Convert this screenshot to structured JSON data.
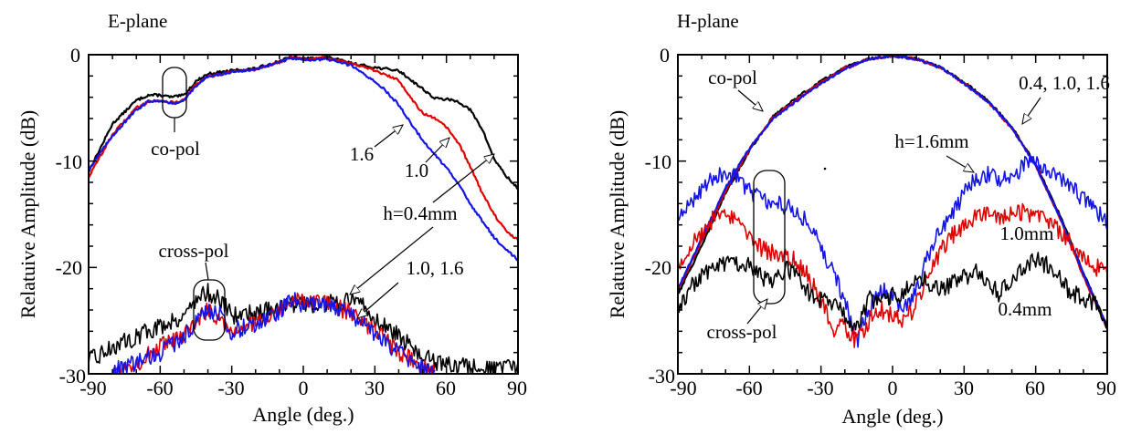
{
  "colors": {
    "h04": "#000000",
    "h10": "#e00000",
    "h16": "#1414e6",
    "axis": "#000000"
  },
  "chart_data": [
    {
      "type": "line",
      "title": "E-plane",
      "xlabel": "Angle (deg.)",
      "ylabel": "Relatuive Amplitude (dB)",
      "xlim": [
        -90,
        90
      ],
      "ylim": [
        -30,
        0
      ],
      "xticks": [
        "-90",
        "-60",
        "-30",
        "0",
        "30",
        "60",
        "90"
      ],
      "yticks": [
        "0",
        "-10",
        "-20",
        "-30"
      ],
      "grid": false,
      "annotations": [
        {
          "text": "co-pol"
        },
        {
          "text": "cross-pol"
        },
        {
          "text": "1.6"
        },
        {
          "text": "1.0"
        },
        {
          "text": "h=0.4mm"
        },
        {
          "text": "1.0, 1.6"
        }
      ],
      "series": [
        {
          "name": "h=0.4mm co-pol",
          "color": "black",
          "x": [
            -90,
            -80,
            -70,
            -65,
            -60,
            -55,
            -50,
            -45,
            -40,
            -30,
            -20,
            -10,
            -5,
            0,
            10,
            20,
            30,
            40,
            50,
            55,
            60,
            65,
            70,
            75,
            80,
            85,
            90
          ],
          "y": [
            -11,
            -6.5,
            -4.3,
            -3.8,
            -3.8,
            -4,
            -3.8,
            -2.5,
            -1.8,
            -1.5,
            -1.3,
            -0.6,
            -0.2,
            -0.4,
            -0.2,
            -0.8,
            -1.2,
            -1.5,
            -3.2,
            -4.1,
            -4.2,
            -4.4,
            -5.2,
            -7,
            -9.8,
            -11.4,
            -12.6
          ]
        },
        {
          "name": "1.0 co-pol",
          "color": "red",
          "x": [
            -90,
            -80,
            -70,
            -65,
            -60,
            -55,
            -50,
            -45,
            -40,
            -30,
            -20,
            -10,
            -5,
            0,
            10,
            20,
            30,
            40,
            45,
            50,
            55,
            60,
            65,
            70,
            75,
            80,
            85,
            90
          ],
          "y": [
            -11.5,
            -7.5,
            -5,
            -4.4,
            -4.3,
            -4.5,
            -4.3,
            -2.8,
            -2.1,
            -1.6,
            -1.4,
            -0.7,
            -0.2,
            -0.4,
            -0.3,
            -0.8,
            -1.5,
            -2.4,
            -4,
            -5.5,
            -6,
            -6.8,
            -8.3,
            -10.5,
            -13,
            -15,
            -16.6,
            -17.4
          ]
        },
        {
          "name": "1.6 co-pol",
          "color": "blue",
          "x": [
            -90,
            -80,
            -70,
            -65,
            -60,
            -55,
            -50,
            -45,
            -40,
            -30,
            -20,
            -10,
            -5,
            0,
            10,
            20,
            30,
            35,
            40,
            45,
            50,
            55,
            60,
            65,
            70,
            75,
            80,
            85,
            90
          ],
          "y": [
            -10.8,
            -7.6,
            -5.2,
            -4.4,
            -4.3,
            -4.6,
            -4.3,
            -2.9,
            -2.1,
            -1.6,
            -1.4,
            -0.7,
            -0.3,
            -0.5,
            -0.4,
            -1,
            -2.5,
            -3.5,
            -4.7,
            -6.4,
            -8,
            -9.4,
            -10.6,
            -12.2,
            -14,
            -15.6,
            -17.2,
            -18.3,
            -19.3
          ]
        },
        {
          "name": "h=0.4mm cross-pol",
          "color": "black",
          "x": [
            -90,
            -80,
            -70,
            -60,
            -50,
            -45,
            -40,
            -35,
            -30,
            -20,
            -10,
            0,
            10,
            20,
            25,
            30,
            40,
            50,
            55,
            60,
            70,
            80,
            90
          ],
          "y": [
            -28.8,
            -27.5,
            -26.5,
            -25.5,
            -24.5,
            -23,
            -22.3,
            -23,
            -24.5,
            -24.2,
            -23.6,
            -23.4,
            -23.4,
            -23.2,
            -23.4,
            -24.8,
            -26.5,
            -28.2,
            -29,
            -29.2,
            -29.4,
            -29.6,
            -29.5
          ]
        },
        {
          "name": "1.0 cross-pol",
          "color": "red",
          "x": [
            -80,
            -70,
            -60,
            -50,
            -45,
            -40,
            -35,
            -30,
            -20,
            -10,
            -5,
            0,
            10,
            20,
            30,
            40,
            50,
            55
          ],
          "y": [
            -29.8,
            -29,
            -27.5,
            -26.5,
            -25,
            -24,
            -24.7,
            -26,
            -25.2,
            -24.2,
            -23,
            -23.3,
            -23.4,
            -24.2,
            -26,
            -28,
            -29.4,
            -30
          ]
        },
        {
          "name": "1.6 cross-pol",
          "color": "blue",
          "x": [
            -80,
            -70,
            -60,
            -50,
            -45,
            -40,
            -35,
            -30,
            -20,
            -10,
            -5,
            0,
            10,
            20,
            30,
            40,
            50,
            55
          ],
          "y": [
            -29.8,
            -29,
            -28,
            -26.5,
            -25,
            -24,
            -24.5,
            -26,
            -25.3,
            -24,
            -23,
            -23.5,
            -23.6,
            -24.3,
            -26.2,
            -28,
            -29.5,
            -30
          ]
        }
      ]
    },
    {
      "type": "line",
      "title": "H-plane",
      "xlabel": "Angle (deg.)",
      "ylabel": "Relatuive Amplitude (dB)",
      "xlim": [
        -90,
        90
      ],
      "ylim": [
        -30,
        0
      ],
      "xticks": [
        "-90",
        "-60",
        "-30",
        "0",
        "30",
        "60",
        "90"
      ],
      "yticks": [
        "0",
        "-10",
        "-20",
        "-30"
      ],
      "grid": false,
      "annotations": [
        {
          "text": "co-pol"
        },
        {
          "text": "0.4, 1.0, 1.6"
        },
        {
          "text": "h=1.6mm"
        },
        {
          "text": "1.0mm"
        },
        {
          "text": "0.4mm"
        },
        {
          "text": "cross-pol"
        }
      ],
      "series": [
        {
          "name": "co-pol 0.4",
          "color": "black",
          "x": [
            -90,
            -80,
            -70,
            -60,
            -50,
            -40,
            -30,
            -20,
            -10,
            0,
            10,
            20,
            30,
            40,
            50,
            60,
            70,
            80,
            90
          ],
          "y": [
            -22.5,
            -18,
            -13,
            -9,
            -5.8,
            -4,
            -2.5,
            -1.2,
            -0.4,
            -0.1,
            -0.4,
            -1.2,
            -2.6,
            -4.3,
            -6.8,
            -10.3,
            -15,
            -20.5,
            -25.5
          ]
        },
        {
          "name": "co-pol 1.0",
          "color": "red",
          "x": [
            -90,
            -80,
            -70,
            -60,
            -50,
            -40,
            -30,
            -20,
            -10,
            0,
            10,
            20,
            30,
            40,
            50,
            60,
            70,
            80,
            90
          ],
          "y": [
            -22.2,
            -17.5,
            -12.8,
            -8.9,
            -5.9,
            -4.2,
            -2.6,
            -1.3,
            -0.4,
            -0.1,
            -0.4,
            -1.2,
            -2.7,
            -4.4,
            -6.9,
            -10.4,
            -15.3,
            -20.8,
            -25.8
          ]
        },
        {
          "name": "co-pol 1.6",
          "color": "blue",
          "x": [
            -90,
            -80,
            -70,
            -60,
            -50,
            -40,
            -30,
            -20,
            -10,
            0,
            10,
            20,
            30,
            40,
            50,
            60,
            70,
            80,
            90
          ],
          "y": [
            -22,
            -17.3,
            -12.5,
            -8.8,
            -6,
            -4.3,
            -2.7,
            -1.3,
            -0.4,
            -0.1,
            -0.4,
            -1.2,
            -2.7,
            -4.4,
            -6.9,
            -10.4,
            -15.2,
            -20.6,
            -25.6
          ]
        },
        {
          "name": "h=1.6mm cross-pol",
          "color": "blue",
          "x": [
            -90,
            -85,
            -80,
            -75,
            -70,
            -65,
            -60,
            -55,
            -50,
            -45,
            -40,
            -35,
            -30,
            -25,
            -20,
            -15,
            -10,
            -5,
            0,
            5,
            10,
            15,
            20,
            25,
            30,
            35,
            40,
            45,
            50,
            55,
            60,
            65,
            70,
            75,
            80,
            85,
            90
          ],
          "y": [
            -15.8,
            -14,
            -12.5,
            -11.5,
            -11.1,
            -11.6,
            -12.7,
            -13.6,
            -14,
            -14.2,
            -14.6,
            -16,
            -18,
            -20.5,
            -23,
            -27,
            -24,
            -22,
            -23,
            -24,
            -22,
            -19,
            -16.5,
            -15.2,
            -13,
            -11.6,
            -11.3,
            -11.9,
            -11.6,
            -10.4,
            -10.1,
            -10.6,
            -11.3,
            -12.5,
            -13.6,
            -14.8,
            -15.7
          ]
        },
        {
          "name": "1.0mm cross-pol",
          "color": "red",
          "x": [
            -90,
            -85,
            -80,
            -75,
            -70,
            -65,
            -60,
            -55,
            -50,
            -45,
            -40,
            -35,
            -30,
            -25,
            -20,
            -15,
            -10,
            -5,
            0,
            5,
            10,
            15,
            20,
            25,
            30,
            35,
            40,
            45,
            50,
            55,
            60,
            65,
            70,
            75,
            80,
            85,
            90
          ],
          "y": [
            -19.8,
            -18,
            -16.7,
            -15.4,
            -15.1,
            -15.7,
            -16.8,
            -18.2,
            -18.6,
            -18.9,
            -19.5,
            -21,
            -23,
            -26,
            -25.5,
            -27,
            -25,
            -24,
            -24.5,
            -25,
            -23.5,
            -21,
            -18.5,
            -17,
            -16,
            -15.2,
            -15,
            -15.6,
            -15,
            -14.8,
            -15,
            -15.8,
            -16.6,
            -17.7,
            -18.8,
            -20,
            -20.2
          ]
        },
        {
          "name": "0.4mm cross-pol",
          "color": "black",
          "x": [
            -90,
            -85,
            -80,
            -75,
            -70,
            -65,
            -60,
            -55,
            -50,
            -45,
            -40,
            -35,
            -30,
            -25,
            -20,
            -15,
            -10,
            -5,
            0,
            5,
            10,
            15,
            20,
            25,
            30,
            35,
            40,
            45,
            50,
            55,
            60,
            65,
            70,
            75,
            80,
            85,
            90
          ],
          "y": [
            -23.8,
            -22,
            -20.6,
            -20.2,
            -19.5,
            -19.8,
            -19.8,
            -21,
            -21.5,
            -20,
            -20.8,
            -22.5,
            -23,
            -23.2,
            -24.5,
            -25.5,
            -22.8,
            -23.5,
            -22.5,
            -22.5,
            -20.5,
            -21.5,
            -22,
            -21.5,
            -21,
            -20.3,
            -21.5,
            -22.5,
            -21,
            -20,
            -19.2,
            -19.8,
            -21,
            -22.5,
            -22.8,
            -23.5,
            -25
          ]
        }
      ]
    }
  ]
}
